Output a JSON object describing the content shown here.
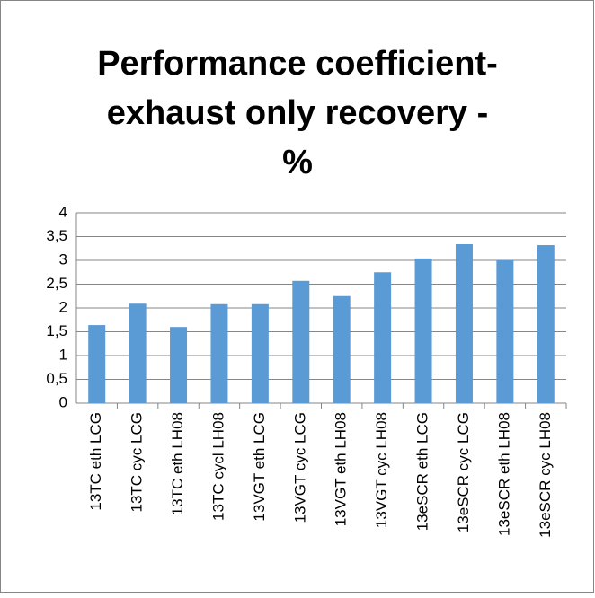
{
  "chart_data": {
    "type": "bar",
    "title": [
      "Performance coefficient-",
      "exhaust only recovery -",
      "%"
    ],
    "categories": [
      "13TC eth LCG",
      "13TC cyc LCG",
      "13TC eth LH08",
      "13TC cycl LH08",
      "13VGT eth LCG",
      "13VGT cyc LCG",
      "13VGT eth LH08",
      "13VGT cyc LH08",
      "13eSCR eth LCG",
      "13eSCR cyc LCG",
      "13eSCR eth LH08",
      "13eSCR cyc LH08"
    ],
    "values": [
      1.64,
      2.09,
      1.6,
      2.08,
      2.08,
      2.57,
      2.25,
      2.75,
      3.04,
      3.34,
      3.0,
      3.32
    ],
    "color": "#5b9bd5",
    "ylim": [
      0,
      4
    ],
    "yticks": [
      0,
      {
        "value": 0.5,
        "label": "0,5"
      },
      1,
      {
        "value": 1.5,
        "label": "1,5"
      },
      2,
      {
        "value": 2.5,
        "label": "2,5"
      },
      3,
      {
        "value": 3.5,
        "label": "3,5"
      },
      4
    ],
    "grid": true
  }
}
